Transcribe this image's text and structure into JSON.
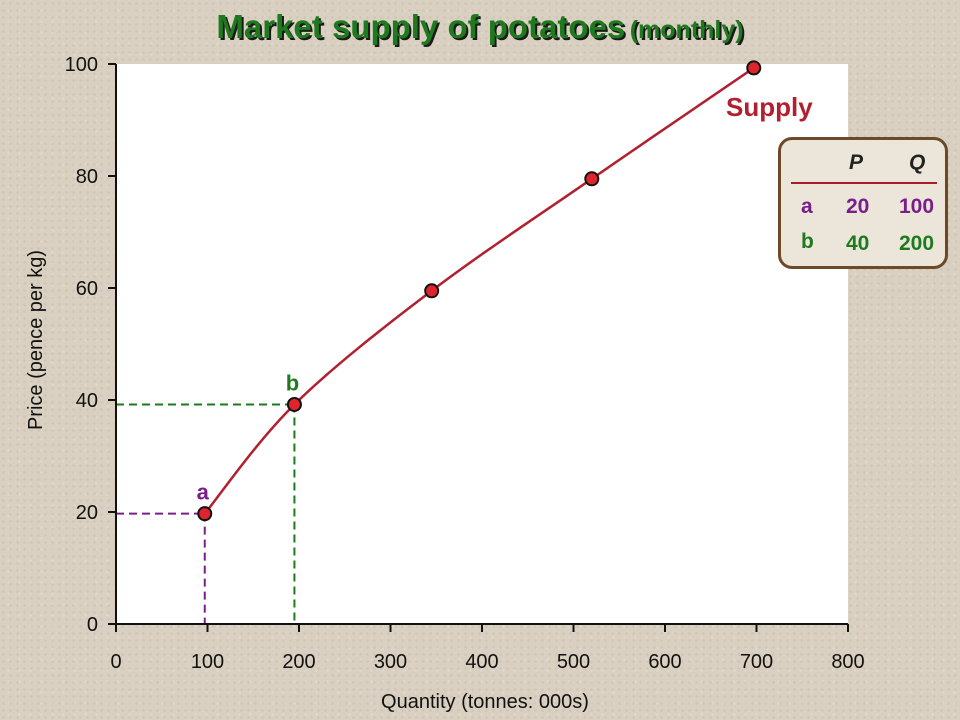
{
  "title": {
    "main": "Market supply of potatoes",
    "sub": "(monthly)"
  },
  "chart_data": {
    "type": "line",
    "title": "Market supply of potatoes (monthly)",
    "xlabel": "Quantity (tonnes: 000s)",
    "ylabel": "Price (pence per kg)",
    "xlim": [
      0,
      800
    ],
    "ylim": [
      0,
      100
    ],
    "xticks": [
      0,
      100,
      200,
      300,
      400,
      500,
      600,
      700,
      800
    ],
    "yticks": [
      0,
      20,
      40,
      60,
      80,
      100
    ],
    "grid": false,
    "series": [
      {
        "name": "Supply",
        "color": "#b22030",
        "points": [
          {
            "x": 97,
            "y": 19.7
          },
          {
            "x": 195,
            "y": 39.2
          },
          {
            "x": 345,
            "y": 59.5
          },
          {
            "x": 520,
            "y": 79.5
          },
          {
            "x": 697,
            "y": 99.3
          }
        ]
      }
    ],
    "marked_points": [
      {
        "label": "a",
        "x": 97,
        "y": 19.7,
        "color": "#7a1e8a"
      },
      {
        "label": "b",
        "x": 195,
        "y": 39.2,
        "color": "#1e7a1e"
      }
    ]
  },
  "table": {
    "headers": {
      "p": "P",
      "q": "Q"
    },
    "rows": [
      {
        "label": "a",
        "p": "20",
        "q": "100",
        "label_color": "#7a1e8a",
        "value_color": "#7a1e8a"
      },
      {
        "label": "b",
        "p": "40",
        "q": "200",
        "label_color": "#1e7a1e",
        "value_color": "#1e7a1e"
      }
    ]
  }
}
